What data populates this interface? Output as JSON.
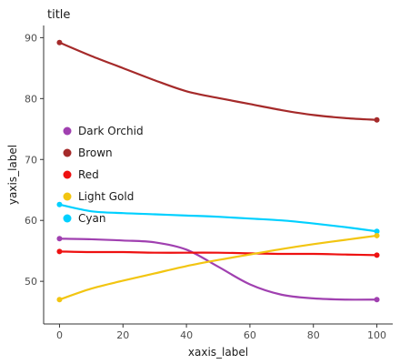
{
  "chart_data": {
    "type": "line",
    "title": "title",
    "xlabel": "xaxis_label",
    "ylabel": "yaxis_label",
    "xlim": [
      -5,
      105
    ],
    "ylim": [
      43,
      92
    ],
    "xticks": [
      0,
      20,
      40,
      60,
      80,
      100
    ],
    "yticks": [
      50,
      60,
      70,
      80,
      90
    ],
    "grid": false,
    "legend_position": "left",
    "legend_order": [
      "Dark Orchid",
      "Brown",
      "Red",
      "Light Gold",
      "Cyan"
    ],
    "series": [
      {
        "name": "Brown",
        "color": "#a52a2a",
        "x": [
          0,
          10,
          20,
          30,
          40,
          50,
          60,
          70,
          80,
          90,
          100
        ],
        "y": [
          89.2,
          87.0,
          85.0,
          83.0,
          81.2,
          80.1,
          79.1,
          78.1,
          77.3,
          76.8,
          76.5
        ]
      },
      {
        "name": "Cyan",
        "color": "#00d0ff",
        "x": [
          0,
          10,
          20,
          30,
          40,
          50,
          60,
          70,
          80,
          90,
          100
        ],
        "y": [
          62.6,
          61.5,
          61.2,
          61.0,
          60.8,
          60.6,
          60.3,
          60.0,
          59.5,
          58.9,
          58.2
        ]
      },
      {
        "name": "Dark Orchid",
        "color": "#a040b0",
        "x": [
          0,
          10,
          20,
          30,
          40,
          50,
          60,
          70,
          80,
          90,
          100
        ],
        "y": [
          57.0,
          56.9,
          56.7,
          56.4,
          55.2,
          52.4,
          49.5,
          47.8,
          47.2,
          47.0,
          47.0
        ]
      },
      {
        "name": "Red",
        "color": "#ee1111",
        "x": [
          0,
          10,
          20,
          30,
          40,
          50,
          60,
          70,
          80,
          90,
          100
        ],
        "y": [
          54.9,
          54.8,
          54.8,
          54.7,
          54.7,
          54.7,
          54.6,
          54.5,
          54.5,
          54.4,
          54.3
        ]
      },
      {
        "name": "Light Gold",
        "color": "#f2c511",
        "x": [
          0,
          10,
          20,
          30,
          40,
          50,
          60,
          70,
          80,
          90,
          100
        ],
        "y": [
          47.0,
          48.8,
          50.1,
          51.3,
          52.5,
          53.5,
          54.4,
          55.3,
          56.1,
          56.8,
          57.5
        ]
      }
    ]
  }
}
